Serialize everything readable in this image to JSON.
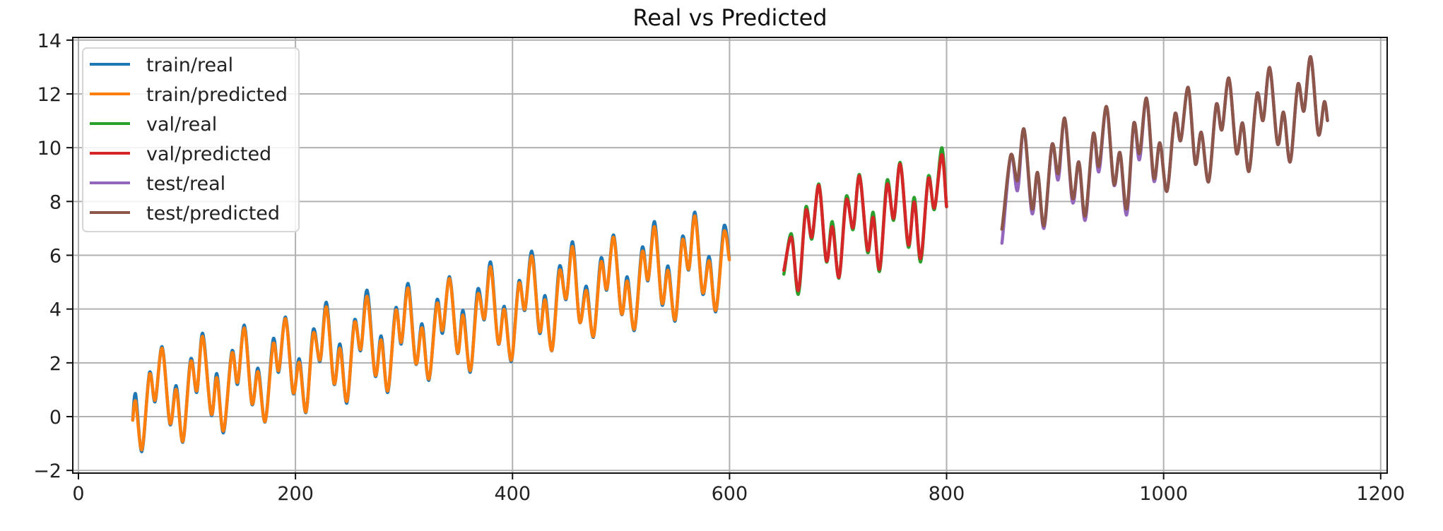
{
  "chart_data": {
    "type": "line",
    "title": "Real vs Predicted",
    "xlabel": "",
    "ylabel": "",
    "xlim": [
      -5.2,
      1206
    ],
    "ylim": [
      -2.1,
      14.1
    ],
    "xticks": [
      0,
      200,
      400,
      600,
      800,
      1000,
      1200
    ],
    "yticks": [
      -2,
      0,
      2,
      4,
      6,
      8,
      10,
      12,
      14
    ],
    "xtick_labels": [
      "0",
      "200",
      "400",
      "600",
      "800",
      "1000",
      "1200"
    ],
    "ytick_labels": [
      "−2",
      "0",
      "2",
      "4",
      "6",
      "8",
      "10",
      "12",
      "14"
    ],
    "grid": true,
    "legend_position": "upper-left",
    "series": [
      {
        "name": "train/real",
        "color": "#1f77b4",
        "x": [
          50,
          52.6,
          58.4,
          65.6,
          70.6,
          77.1,
          84.5,
          90.1,
          96.2,
          103.6,
          109,
          114.5,
          122.5,
          127.5,
          133.6,
          141.6,
          146.6,
          152.9,
          160,
          165.5,
          172,
          179.6,
          184.4,
          190.9,
          198,
          203.5,
          209.6,
          216.5,
          222.6,
          228.5,
          235.6,
          241,
          247.3,
          254.5,
          260,
          266,
          273.6,
          279,
          285,
          292.5,
          297.5,
          303.8,
          311,
          316.6,
          322.9,
          330.5,
          335.5,
          342,
          349.4,
          354.4,
          361.1,
          368.1,
          374,
          379.8,
          387,
          392.4,
          398.9,
          406,
          411.3,
          417.8,
          425,
          430,
          436.3,
          443.4,
          449.3,
          455.4,
          462,
          468,
          474.5,
          481.6,
          486.8,
          493.2,
          500.5,
          505.7,
          512.2,
          519.6,
          524.8,
          530.9,
          537.9,
          543.3,
          549.8,
          556.7,
          562.3,
          568.1,
          575.3,
          581.2,
          587.3,
          595,
          599.8
        ],
        "y": [
          -0.13,
          0.85,
          -1.3,
          1.65,
          0.55,
          2.6,
          -0.3,
          1.15,
          -0.95,
          2.15,
          0.9,
          3.1,
          0.05,
          1.6,
          -0.6,
          2.45,
          1.2,
          3.4,
          0.45,
          1.8,
          -0.2,
          2.9,
          1.65,
          3.7,
          0.85,
          2.15,
          0.15,
          3.25,
          2.05,
          4.25,
          1.2,
          2.7,
          0.5,
          3.6,
          2.45,
          4.7,
          1.5,
          3.0,
          0.9,
          4.05,
          2.7,
          4.95,
          1.95,
          3.45,
          1.35,
          4.35,
          3.1,
          5.2,
          2.35,
          3.95,
          1.65,
          4.75,
          3.6,
          5.75,
          2.7,
          4.1,
          2.05,
          5.05,
          3.95,
          6.15,
          3.1,
          4.5,
          2.45,
          5.6,
          4.35,
          6.5,
          3.5,
          4.85,
          2.95,
          5.9,
          4.7,
          6.75,
          3.8,
          5.2,
          3.2,
          6.3,
          5.05,
          7.25,
          4.15,
          5.6,
          3.55,
          6.7,
          5.45,
          7.6,
          4.55,
          5.95,
          3.9,
          7.1,
          5.9
        ]
      },
      {
        "name": "train/predicted",
        "color": "#ff7f0e",
        "x": [
          50,
          52.6,
          58.4,
          65.6,
          70.6,
          77.1,
          84.5,
          90.1,
          96.2,
          103.6,
          109,
          114.5,
          122.5,
          127.5,
          133.6,
          141.6,
          146.6,
          152.9,
          160,
          165.5,
          172,
          179.6,
          184.4,
          190.9,
          198,
          203.5,
          209.6,
          216.5,
          222.6,
          228.5,
          235.6,
          241,
          247.3,
          254.5,
          260,
          266,
          273.6,
          279,
          285,
          292.5,
          297.5,
          303.8,
          311,
          316.6,
          322.9,
          330.5,
          335.5,
          342,
          349.4,
          354.4,
          361.1,
          368.1,
          374,
          379.8,
          387,
          392.4,
          398.9,
          406,
          411.3,
          417.8,
          425,
          430,
          436.3,
          443.4,
          449.3,
          455.4,
          462,
          468,
          474.5,
          481.6,
          486.8,
          493.2,
          500.5,
          505.7,
          512.2,
          519.6,
          524.8,
          530.9,
          537.9,
          543.3,
          549.8,
          556.7,
          562.3,
          568.1,
          575.3,
          581.2,
          587.3,
          595,
          599.8
        ],
        "y": [
          -0.13,
          0.58,
          -1.23,
          1.58,
          0.61,
          2.54,
          -0.26,
          1.01,
          -0.92,
          2.06,
          0.96,
          2.98,
          0.09,
          1.45,
          -0.53,
          2.37,
          1.27,
          3.29,
          0.48,
          1.67,
          -0.18,
          2.72,
          1.71,
          3.64,
          0.88,
          2.02,
          0.18,
          3.11,
          2.1,
          4.08,
          1.23,
          2.54,
          0.57,
          3.51,
          2.5,
          4.47,
          1.54,
          2.85,
          0.96,
          3.95,
          2.76,
          4.78,
          1.97,
          3.3,
          1.4,
          4.21,
          3.2,
          5.13,
          2.37,
          3.77,
          1.71,
          4.56,
          3.64,
          5.57,
          2.72,
          3.99,
          2.1,
          4.96,
          3.99,
          5.97,
          3.16,
          4.34,
          2.46,
          5.44,
          4.39,
          6.32,
          3.51,
          4.69,
          2.98,
          5.75,
          4.74,
          6.67,
          3.82,
          5.04,
          3.25,
          6.14,
          5.09,
          7.06,
          4.21,
          5.44,
          3.6,
          6.58,
          5.48,
          7.46,
          4.61,
          5.79,
          3.95,
          6.89,
          5.83
        ]
      },
      {
        "name": "val/real",
        "color": "#2ca02c",
        "x": [
          650,
          656.9,
          663.4,
          670.4,
          675.8,
          682.3,
          689.3,
          694.7,
          700.8,
          707.7,
          713.8,
          719.7,
          727.3,
          732.3,
          738.2,
          745.3,
          751.2,
          757.3,
          764.8,
          770.2,
          776.1,
          783.3,
          788.7,
          795.6,
          800
        ],
        "y": [
          5.3,
          6.8,
          4.55,
          7.8,
          6.6,
          8.65,
          5.75,
          7.25,
          5.15,
          8.2,
          6.95,
          9.0,
          6.1,
          7.6,
          5.4,
          8.8,
          7.3,
          9.45,
          6.3,
          8.15,
          5.75,
          8.95,
          7.7,
          10.0,
          7.8
        ]
      },
      {
        "name": "val/predicted",
        "color": "#d62728",
        "x": [
          650,
          656.9,
          663.4,
          670.4,
          675.8,
          682.3,
          689.3,
          694.7,
          700.8,
          707.7,
          713.8,
          719.7,
          727.3,
          732.3,
          738.2,
          745.3,
          751.2,
          757.3,
          764.8,
          770.2,
          776.1,
          783.3,
          788.7,
          795.6,
          800
        ],
        "y": [
          5.44,
          6.67,
          4.69,
          7.68,
          6.67,
          8.6,
          5.79,
          7.06,
          5.18,
          8.07,
          7.02,
          8.95,
          6.18,
          7.41,
          5.48,
          8.64,
          7.37,
          9.39,
          6.38,
          7.98,
          5.88,
          8.86,
          7.76,
          9.74,
          7.81
        ]
      },
      {
        "name": "test/real",
        "color": "#9467bd",
        "x": [
          851,
          859.3,
          865.3,
          871.2,
          878.8,
          883.8,
          889.7,
          897.3,
          902.8,
          908.8,
          916.2,
          921.8,
          927.7,
          935.3,
          940.3,
          947.3,
          954.3,
          959.7,
          965.9,
          972.6,
          977.7,
          984.2,
          991.1,
          996.5,
          1003,
          1010.6,
          1015.6,
          1022.6,
          1029.3,
          1034.7,
          1041.4,
          1048.6,
          1053.6,
          1060.1,
          1067.3,
          1072.7,
          1078.6,
          1086.2,
          1091.6,
          1097.7,
          1105.1,
          1110.5,
          1116.6,
          1123.8,
          1129.2,
          1135.5,
          1142.7,
          1148.1,
          1151
        ],
        "y": [
          6.45,
          9.74,
          8.4,
          10.7,
          7.55,
          9.08,
          7.0,
          10.13,
          8.8,
          11.1,
          7.95,
          9.47,
          7.3,
          10.53,
          9.1,
          11.53,
          8.6,
          9.82,
          7.5,
          10.92,
          9.55,
          11.84,
          8.75,
          10.18,
          8.38,
          11.27,
          10.26,
          12.24,
          9.39,
          10.57,
          8.73,
          11.62,
          10.66,
          12.59,
          9.78,
          10.92,
          9.12,
          12.02,
          11.01,
          12.98,
          10.13,
          11.32,
          9.47,
          12.37,
          11.36,
          13.38,
          10.48,
          11.71,
          11.01
        ]
      },
      {
        "name": "test/predicted",
        "color": "#8c564b",
        "x": [
          851,
          859.3,
          865.3,
          871.2,
          878.8,
          883.8,
          889.7,
          897.3,
          902.8,
          908.8,
          916.2,
          921.8,
          927.7,
          935.3,
          940.3,
          947.3,
          954.3,
          959.7,
          965.9,
          972.6,
          977.7,
          984.2,
          991.1,
          996.5,
          1003,
          1010.6,
          1015.6,
          1022.6,
          1029.3,
          1034.7,
          1041.4,
          1048.6,
          1053.6,
          1060.1,
          1067.3,
          1072.7,
          1078.6,
          1086.2,
          1091.6,
          1097.7,
          1105.1,
          1110.5,
          1116.6,
          1123.8,
          1129.2,
          1135.5,
          1142.7,
          1148.1,
          1151
        ],
        "y": [
          6.97,
          9.74,
          8.77,
          10.7,
          7.72,
          9.08,
          7.1,
          10.13,
          9.03,
          11.1,
          8.11,
          9.47,
          7.46,
          10.53,
          9.3,
          11.53,
          8.64,
          9.82,
          7.72,
          10.92,
          9.78,
          11.84,
          8.86,
          10.18,
          8.38,
          11.27,
          10.26,
          12.24,
          9.39,
          10.57,
          8.73,
          11.62,
          10.66,
          12.59,
          9.78,
          10.92,
          9.12,
          12.02,
          11.01,
          12.98,
          10.13,
          11.32,
          9.47,
          12.37,
          11.36,
          13.38,
          10.48,
          11.71,
          11.01
        ]
      }
    ]
  }
}
